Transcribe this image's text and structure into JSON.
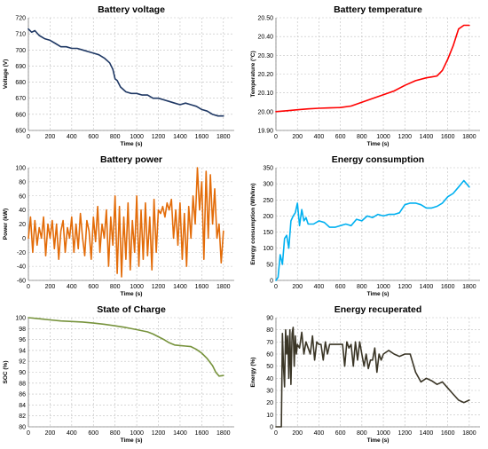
{
  "chart_data": [
    {
      "type": "line",
      "title": "Battery voltage",
      "xlabel": "",
      "ylabel": "Voltage (V)",
      "xlim": [
        0,
        1900
      ],
      "ylim": [
        650,
        720
      ],
      "x_ticks": [
        0,
        200,
        400,
        600,
        800,
        1000,
        1200,
        1400,
        1600,
        1800
      ],
      "y_ticks": [
        650,
        660,
        670,
        680,
        690,
        700,
        710,
        720
      ],
      "y_decimals": 0,
      "grid": "dashed",
      "color": "#1f3864",
      "x": [
        0,
        30,
        60,
        100,
        150,
        200,
        250,
        300,
        350,
        400,
        450,
        500,
        550,
        600,
        650,
        700,
        750,
        780,
        800,
        820,
        850,
        900,
        950,
        1000,
        1050,
        1100,
        1150,
        1200,
        1250,
        1300,
        1350,
        1400,
        1450,
        1500,
        1550,
        1600,
        1650,
        1700,
        1750,
        1800
      ],
      "values": [
        713,
        711,
        712,
        709,
        707,
        706,
        704,
        702,
        702,
        701,
        701,
        700,
        699,
        698,
        697,
        695,
        692,
        688,
        682,
        681,
        677,
        674,
        673,
        673,
        672,
        672,
        670,
        670,
        669,
        668,
        667,
        666,
        667,
        666,
        665,
        663,
        662,
        660,
        659,
        659
      ]
    },
    {
      "type": "line",
      "title": "Battery temperature",
      "xlabel": "",
      "ylabel": "Temperature (°C)",
      "xlim": [
        0,
        1900
      ],
      "ylim": [
        19.9,
        20.5
      ],
      "x_ticks": [
        0,
        200,
        400,
        600,
        800,
        1000,
        1200,
        1400,
        1600,
        1800
      ],
      "y_ticks": [
        19.9,
        20.0,
        20.1,
        20.2,
        20.3,
        20.4,
        20.5
      ],
      "y_decimals": 2,
      "grid": "dashed",
      "color": "#ff0000",
      "x": [
        0,
        100,
        200,
        300,
        400,
        500,
        600,
        700,
        800,
        900,
        1000,
        1100,
        1200,
        1300,
        1400,
        1450,
        1500,
        1550,
        1600,
        1650,
        1700,
        1750,
        1800
      ],
      "values": [
        20.0,
        20.005,
        20.01,
        20.015,
        20.018,
        20.02,
        20.022,
        20.03,
        20.05,
        20.07,
        20.09,
        20.11,
        20.14,
        20.165,
        20.18,
        20.185,
        20.19,
        20.22,
        20.28,
        20.35,
        20.44,
        20.46,
        20.46
      ]
    },
    {
      "type": "line",
      "title": "Battery power",
      "xlabel": "",
      "ylabel": "Power (kW)",
      "xlim": [
        0,
        1900
      ],
      "ylim": [
        -60,
        100
      ],
      "x_ticks": [
        0,
        200,
        400,
        600,
        800,
        1000,
        1200,
        1400,
        1600,
        1800
      ],
      "y_ticks": [
        -60,
        -40,
        -20,
        0,
        20,
        40,
        60,
        80,
        100
      ],
      "y_decimals": 0,
      "grid": "dashed",
      "color": "#e36c09",
      "x": [
        0,
        20,
        40,
        60,
        80,
        100,
        120,
        140,
        160,
        180,
        200,
        220,
        240,
        260,
        280,
        300,
        320,
        340,
        360,
        380,
        400,
        420,
        440,
        460,
        480,
        500,
        520,
        540,
        560,
        580,
        600,
        620,
        640,
        660,
        680,
        700,
        720,
        740,
        760,
        780,
        800,
        820,
        840,
        860,
        880,
        900,
        920,
        940,
        960,
        980,
        1000,
        1020,
        1040,
        1060,
        1080,
        1100,
        1120,
        1140,
        1160,
        1180,
        1200,
        1220,
        1240,
        1260,
        1280,
        1300,
        1320,
        1340,
        1360,
        1380,
        1400,
        1420,
        1440,
        1460,
        1480,
        1500,
        1520,
        1540,
        1560,
        1580,
        1600,
        1620,
        1640,
        1660,
        1680,
        1700,
        1720,
        1740,
        1760,
        1780,
        1800
      ],
      "values": [
        0,
        30,
        -20,
        25,
        -10,
        15,
        0,
        30,
        -25,
        20,
        0,
        25,
        -15,
        20,
        -30,
        10,
        25,
        -20,
        15,
        0,
        30,
        -20,
        20,
        -15,
        35,
        0,
        -25,
        25,
        10,
        -30,
        30,
        -5,
        45,
        -20,
        20,
        0,
        40,
        -40,
        30,
        -10,
        60,
        -50,
        45,
        -55,
        30,
        -30,
        50,
        -45,
        25,
        -20,
        60,
        -40,
        40,
        -30,
        50,
        -25,
        30,
        -45,
        55,
        -20,
        40,
        35,
        45,
        30,
        50,
        40,
        55,
        0,
        40,
        -10,
        50,
        -30,
        35,
        -40,
        45,
        0,
        60,
        20,
        100,
        40,
        80,
        -30,
        95,
        0,
        90,
        20,
        70,
        0,
        20,
        -35,
        10
      ]
    },
    {
      "type": "line",
      "title": "Energy consumption",
      "xlabel": "",
      "ylabel": "Energy consumption (Wh/km)",
      "xlim": [
        0,
        1900
      ],
      "ylim": [
        0,
        350
      ],
      "x_ticks": [
        0,
        200,
        400,
        600,
        800,
        1000,
        1200,
        1400,
        1600,
        1800
      ],
      "y_ticks": [
        0,
        50,
        100,
        150,
        200,
        250,
        300,
        350
      ],
      "y_decimals": 0,
      "grid": "dashed",
      "color": "#00b0f0",
      "x": [
        0,
        20,
        40,
        60,
        80,
        100,
        120,
        140,
        160,
        180,
        200,
        220,
        240,
        260,
        280,
        300,
        350,
        400,
        450,
        500,
        550,
        600,
        650,
        700,
        750,
        800,
        850,
        900,
        950,
        1000,
        1050,
        1100,
        1150,
        1200,
        1250,
        1300,
        1350,
        1400,
        1450,
        1500,
        1550,
        1600,
        1650,
        1700,
        1750,
        1800
      ],
      "values": [
        0,
        10,
        80,
        50,
        130,
        140,
        100,
        185,
        200,
        210,
        240,
        170,
        220,
        185,
        195,
        175,
        175,
        185,
        180,
        165,
        165,
        170,
        175,
        170,
        190,
        185,
        200,
        195,
        205,
        200,
        205,
        205,
        210,
        235,
        240,
        240,
        235,
        225,
        225,
        230,
        240,
        260,
        270,
        290,
        310,
        290
      ]
    },
    {
      "type": "line",
      "title": "State of Charge",
      "xlabel": "",
      "ylabel": "SOC (%)",
      "xlim": [
        0,
        1900
      ],
      "ylim": [
        80,
        100
      ],
      "x_ticks": [
        0,
        200,
        400,
        600,
        800,
        1000,
        1200,
        1400,
        1600,
        1800
      ],
      "y_ticks": [
        80,
        82,
        84,
        86,
        88,
        90,
        92,
        94,
        96,
        98,
        100
      ],
      "y_decimals": 0,
      "grid": "dashed",
      "color": "#77933c",
      "x": [
        0,
        100,
        200,
        300,
        400,
        500,
        600,
        700,
        800,
        900,
        1000,
        1100,
        1150,
        1200,
        1250,
        1300,
        1350,
        1400,
        1450,
        1500,
        1550,
        1600,
        1650,
        1700,
        1730,
        1760,
        1800
      ],
      "values": [
        100,
        99.8,
        99.6,
        99.4,
        99.3,
        99.2,
        99.0,
        98.8,
        98.5,
        98.2,
        97.8,
        97.4,
        97.0,
        96.5,
        96.0,
        95.4,
        95.0,
        94.9,
        94.8,
        94.7,
        94.2,
        93.5,
        92.5,
        91.2,
        90.0,
        89.3,
        89.4
      ]
    },
    {
      "type": "line",
      "title": "Energy recuperated",
      "xlabel": "",
      "ylabel": "Energy (%)",
      "xlim": [
        0,
        1900
      ],
      "ylim": [
        0,
        90
      ],
      "x_ticks": [
        0,
        200,
        400,
        600,
        800,
        1000,
        1200,
        1400,
        1600,
        1800
      ],
      "y_ticks": [
        0,
        10,
        20,
        30,
        40,
        50,
        60,
        70,
        80,
        90
      ],
      "y_decimals": 0,
      "grid": "dashed",
      "color": "#3a3526",
      "x": [
        0,
        30,
        50,
        60,
        70,
        80,
        90,
        100,
        110,
        120,
        130,
        140,
        150,
        160,
        170,
        180,
        190,
        200,
        220,
        240,
        260,
        280,
        300,
        320,
        340,
        360,
        380,
        400,
        420,
        440,
        460,
        480,
        500,
        520,
        540,
        560,
        580,
        600,
        620,
        640,
        660,
        680,
        700,
        720,
        740,
        760,
        780,
        800,
        820,
        840,
        860,
        880,
        900,
        920,
        940,
        960,
        980,
        1000,
        1050,
        1100,
        1150,
        1200,
        1250,
        1300,
        1350,
        1400,
        1450,
        1500,
        1550,
        1600,
        1650,
        1700,
        1750,
        1800
      ],
      "values": [
        0,
        0,
        0,
        77,
        50,
        33,
        80,
        60,
        75,
        40,
        80,
        35,
        77,
        82,
        50,
        75,
        60,
        68,
        65,
        78,
        60,
        70,
        65,
        60,
        75,
        55,
        70,
        68,
        68,
        55,
        70,
        60,
        68,
        68,
        68,
        68,
        68,
        68,
        68,
        50,
        70,
        65,
        68,
        50,
        70,
        55,
        70,
        60,
        50,
        60,
        48,
        55,
        55,
        65,
        45,
        60,
        55,
        60,
        63,
        60,
        58,
        60,
        60,
        45,
        37,
        40,
        38,
        35,
        37,
        32,
        27,
        22,
        20,
        22
      ]
    }
  ],
  "x_axis_label": "Time (s)"
}
